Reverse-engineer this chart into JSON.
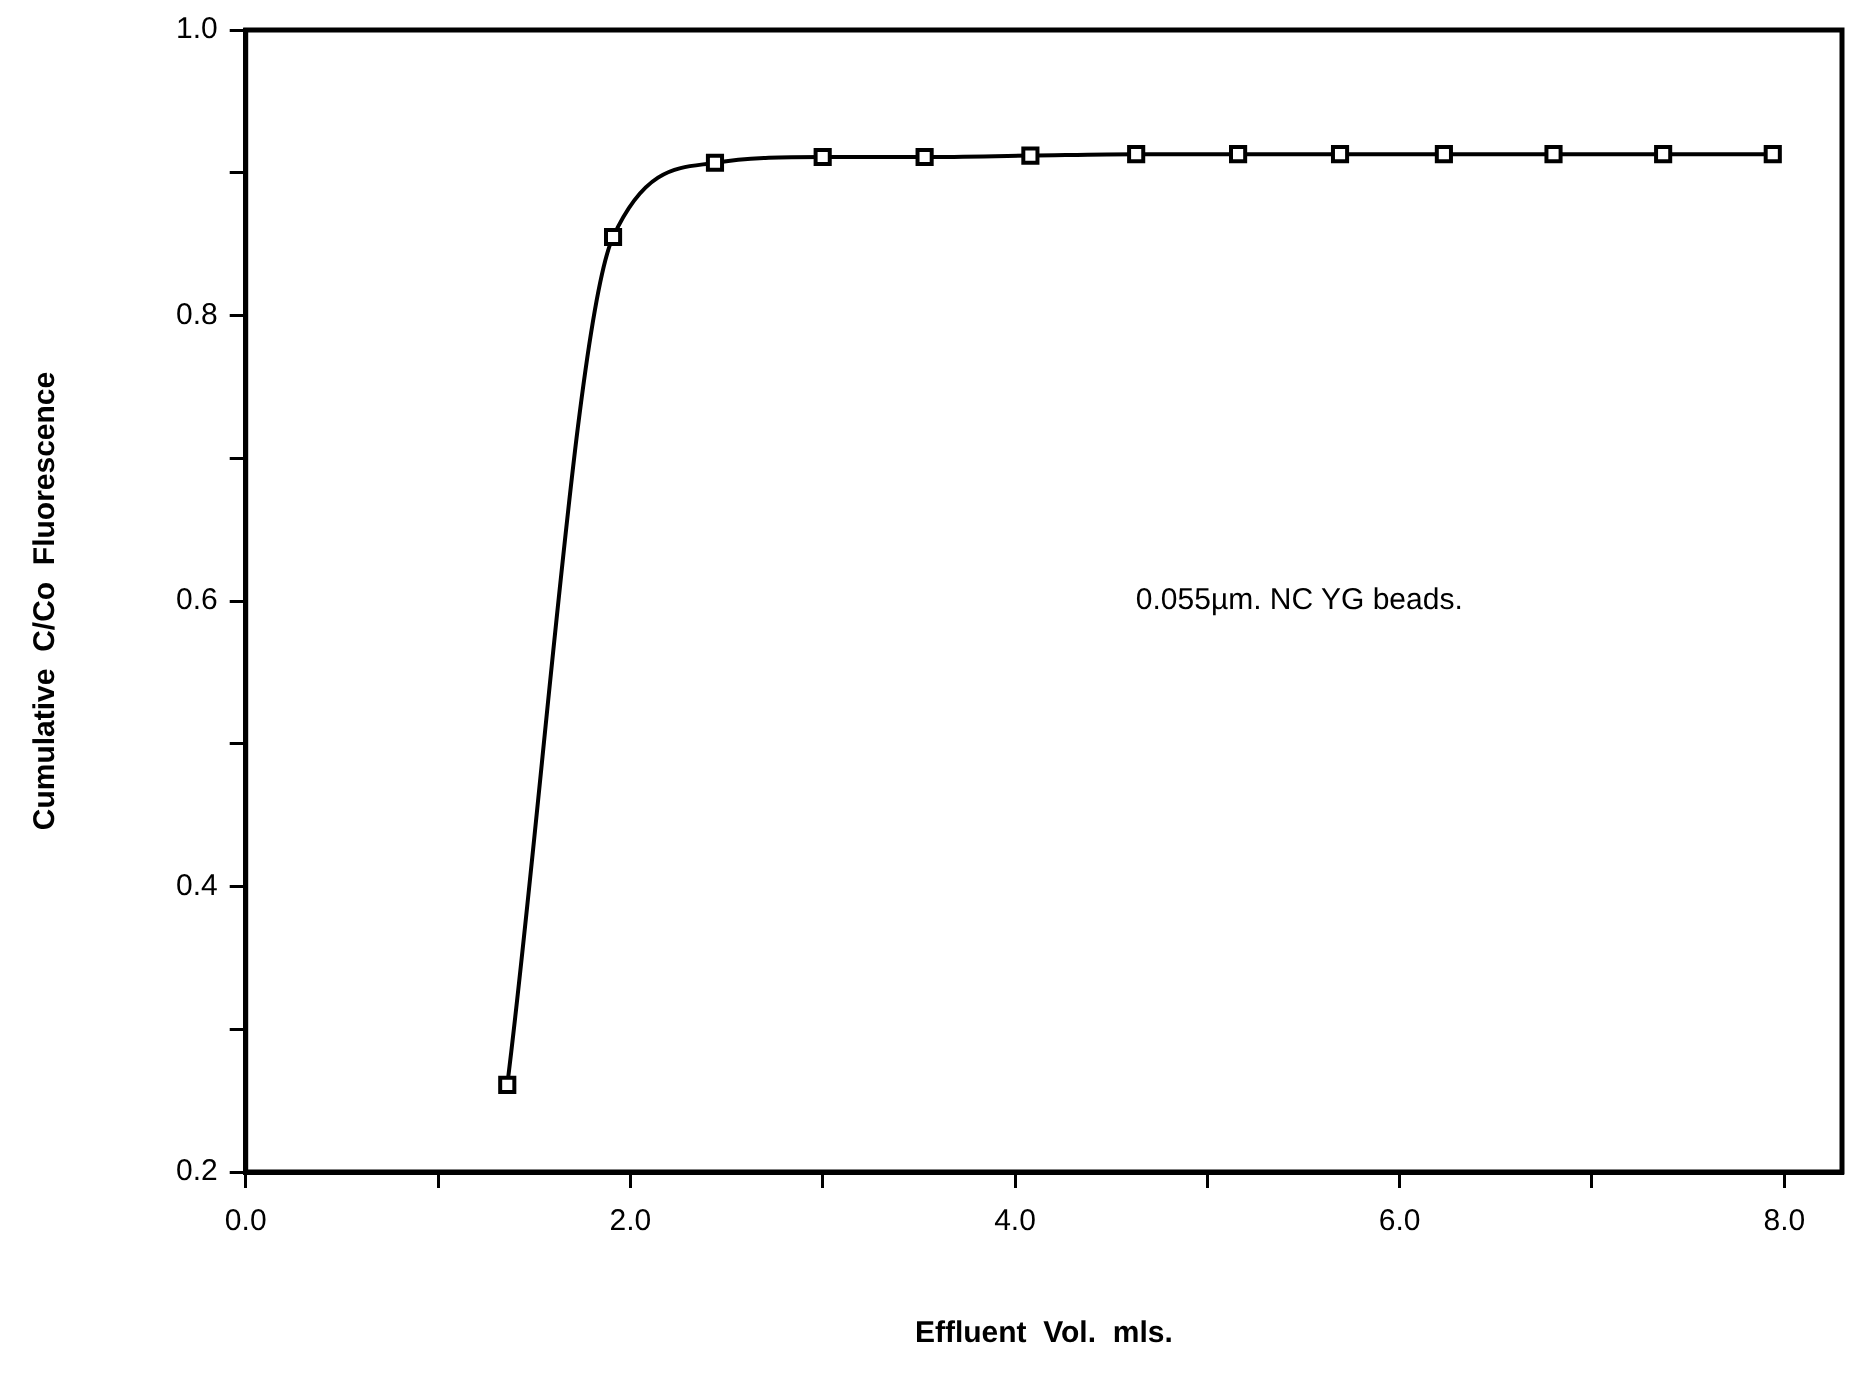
{
  "chart_data": {
    "type": "line",
    "xlabel": "Effluent  Vol.  mls.",
    "ylabel": "Cumulative  C/Co  Fluorescence",
    "annotations": [
      "0.055µm. NC YG beads."
    ],
    "x": [
      1.36,
      1.91,
      2.44,
      3.0,
      3.53,
      4.08,
      4.63,
      5.16,
      5.69,
      6.23,
      6.8,
      7.37,
      7.94
    ],
    "series": [
      {
        "color": "#000000",
        "values": [
          0.261,
          0.855,
          0.907,
          0.911,
          0.911,
          0.912,
          0.913,
          0.913,
          0.913,
          0.913,
          0.913,
          0.913,
          0.913
        ]
      }
    ],
    "xlim": [
      0,
      8.3
    ],
    "xticks": [
      {
        "value": 0,
        "label": "0.0"
      },
      {
        "value": 1,
        "label": null
      },
      {
        "value": 2,
        "label": "2.0"
      },
      {
        "value": 3,
        "label": null
      },
      {
        "value": 4,
        "label": "4.0"
      },
      {
        "value": 5,
        "label": null
      },
      {
        "value": 6,
        "label": "6.0"
      },
      {
        "value": 7,
        "label": null
      },
      {
        "value": 8,
        "label": "8.0"
      }
    ],
    "ylim": [
      0.2,
      1.0
    ],
    "yticks": [
      {
        "value": 0.2,
        "label": "0.2"
      },
      {
        "value": 0.3,
        "label": null
      },
      {
        "value": 0.4,
        "label": "0.4"
      },
      {
        "value": 0.5,
        "label": null
      },
      {
        "value": 0.6,
        "label": "0.6"
      },
      {
        "value": 0.7,
        "label": null
      },
      {
        "value": 0.8,
        "label": "0.8"
      },
      {
        "value": 0.9,
        "label": null
      },
      {
        "value": 1.0,
        "label": "1.0"
      }
    ],
    "marker": "square",
    "line_style": "solid",
    "grid": false,
    "legend": false
  }
}
